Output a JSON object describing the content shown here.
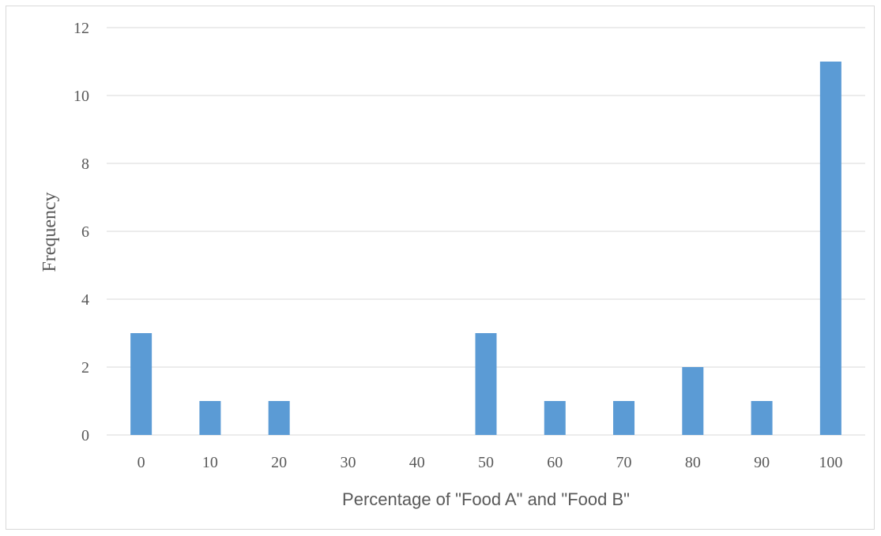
{
  "chart_data": {
    "type": "bar",
    "title": "",
    "xlabel": "Percentage of \"Food A\" and \"Food B\"",
    "ylabel": "Frequency",
    "categories": [
      "0",
      "10",
      "20",
      "30",
      "40",
      "50",
      "60",
      "70",
      "80",
      "90",
      "100"
    ],
    "values": [
      3,
      1,
      1,
      0,
      0,
      3,
      1,
      1,
      2,
      1,
      11
    ],
    "ylim": [
      0,
      12
    ],
    "yticks": [
      "0",
      "2",
      "4",
      "6",
      "8",
      "10",
      "12"
    ],
    "grid": true,
    "legend": "none",
    "bar_color": "#5b9bd5",
    "grid_color": "#d9d9d9"
  }
}
